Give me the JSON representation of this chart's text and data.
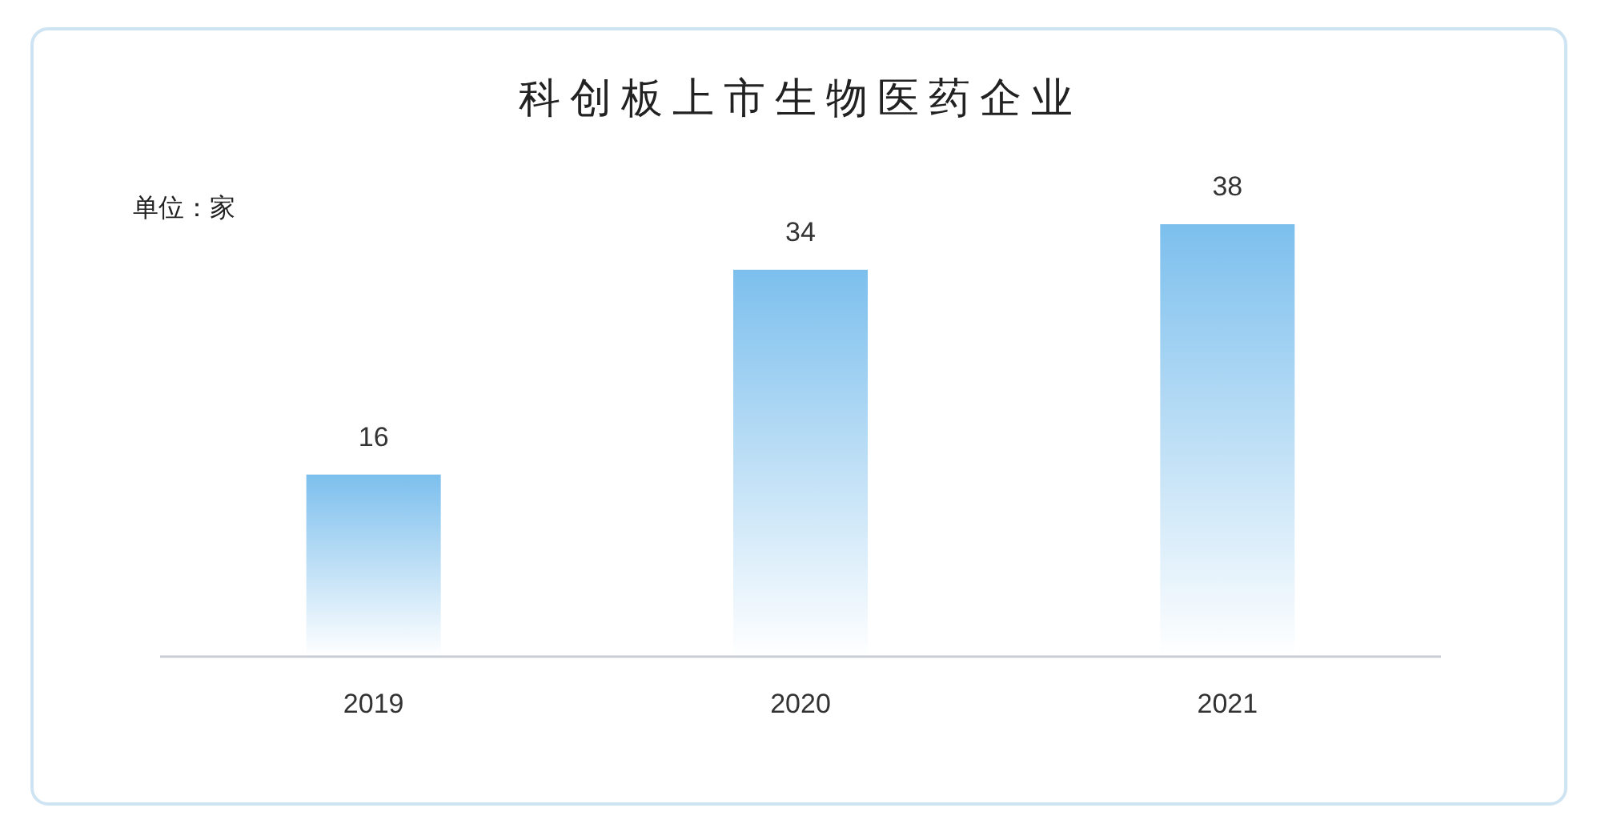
{
  "chart_data": {
    "type": "bar",
    "title": "科创板上市生物医药企业",
    "annotations": [
      "单位：家"
    ],
    "categories": [
      "2019",
      "2020",
      "2021"
    ],
    "values": [
      16,
      34,
      38
    ],
    "color": "#7cbfed",
    "data_labels": true
  }
}
